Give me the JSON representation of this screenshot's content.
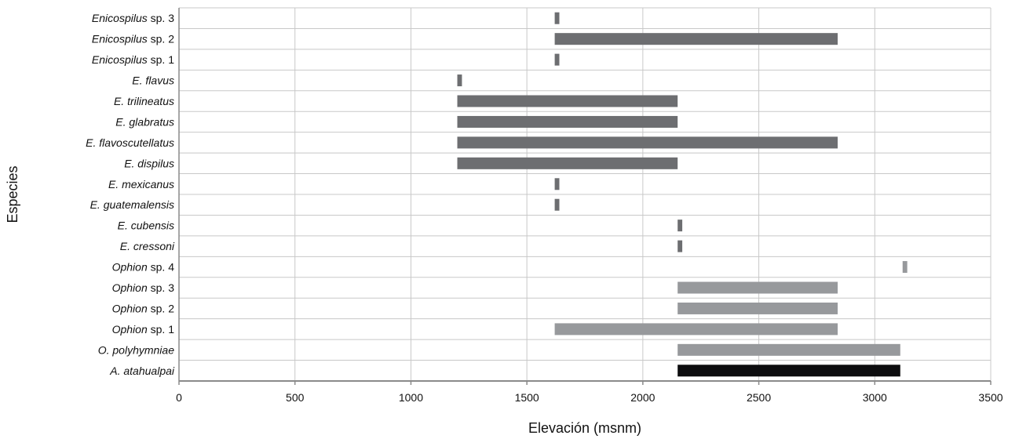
{
  "chart_data": {
    "type": "bar",
    "orientation": "horizontal",
    "xlabel": "Elevación (msnm)",
    "ylabel": "Especies",
    "xlim": [
      0,
      3500
    ],
    "xticks": [
      0,
      500,
      1000,
      1500,
      2000,
      2500,
      3000,
      3500
    ],
    "grid": true,
    "legend": "none",
    "colors": {
      "enicospilus": "#6d6e71",
      "ophion": "#97999c",
      "outgroup": "#0d0d0f",
      "grid": "#c8c8c8",
      "axis": "#8a8a8a"
    },
    "series": [
      {
        "name": "Enicospilus sp. 3",
        "label_italic": "Enicospilus",
        "label_rest": " sp. 3",
        "group": "enicospilus",
        "min": 1620,
        "max": 1640
      },
      {
        "name": "Enicospilus sp. 2",
        "label_italic": "Enicospilus",
        "label_rest": " sp. 2",
        "group": "enicospilus",
        "min": 1620,
        "max": 2840
      },
      {
        "name": "Enicospilus sp. 1",
        "label_italic": "Enicospilus",
        "label_rest": " sp. 1",
        "group": "enicospilus",
        "min": 1620,
        "max": 1640
      },
      {
        "name": "E. flavus",
        "label_italic": "E. flavus",
        "label_rest": "",
        "group": "enicospilus",
        "min": 1200,
        "max": 1220
      },
      {
        "name": "E. trilineatus",
        "label_italic": "E. trilineatus",
        "label_rest": "",
        "group": "enicospilus",
        "min": 1200,
        "max": 2150
      },
      {
        "name": "E. glabratus",
        "label_italic": "E. glabratus",
        "label_rest": "",
        "group": "enicospilus",
        "min": 1200,
        "max": 2150
      },
      {
        "name": "E. flavoscutellatus",
        "label_italic": "E. flavoscutellatus",
        "label_rest": "",
        "group": "enicospilus",
        "min": 1200,
        "max": 2840
      },
      {
        "name": "E. dispilus",
        "label_italic": "E. dispilus",
        "label_rest": "",
        "group": "enicospilus",
        "min": 1200,
        "max": 2150
      },
      {
        "name": "E. mexicanus",
        "label_italic": "E. mexicanus",
        "label_rest": "",
        "group": "enicospilus",
        "min": 1620,
        "max": 1640
      },
      {
        "name": "E. guatemalensis",
        "label_italic": "E. guatemalensis",
        "label_rest": "",
        "group": "enicospilus",
        "min": 1620,
        "max": 1640
      },
      {
        "name": "E. cubensis",
        "label_italic": "E. cubensis",
        "label_rest": "",
        "group": "enicospilus",
        "min": 2150,
        "max": 2170
      },
      {
        "name": "E. cressoni",
        "label_italic": "E. cressoni",
        "label_rest": "",
        "group": "enicospilus",
        "min": 2150,
        "max": 2170
      },
      {
        "name": "Ophion sp. 4",
        "label_italic": "Ophion",
        "label_rest": " sp. 4",
        "group": "ophion",
        "min": 3120,
        "max": 3140
      },
      {
        "name": "Ophion sp. 3",
        "label_italic": "Ophion",
        "label_rest": " sp. 3",
        "group": "ophion",
        "min": 2150,
        "max": 2840
      },
      {
        "name": "Ophion sp. 2",
        "label_italic": "Ophion",
        "label_rest": " sp. 2",
        "group": "ophion",
        "min": 2150,
        "max": 2840
      },
      {
        "name": "Ophion sp. 1",
        "label_italic": "Ophion",
        "label_rest": " sp. 1",
        "group": "ophion",
        "min": 1620,
        "max": 2840
      },
      {
        "name": "O. polyhymniae",
        "label_italic": "O. polyhymniae",
        "label_rest": "",
        "group": "ophion",
        "min": 2150,
        "max": 3110
      },
      {
        "name": "A. atahualpai",
        "label_italic": "A. atahualpai",
        "label_rest": "",
        "group": "outgroup",
        "min": 2150,
        "max": 3110
      }
    ]
  }
}
